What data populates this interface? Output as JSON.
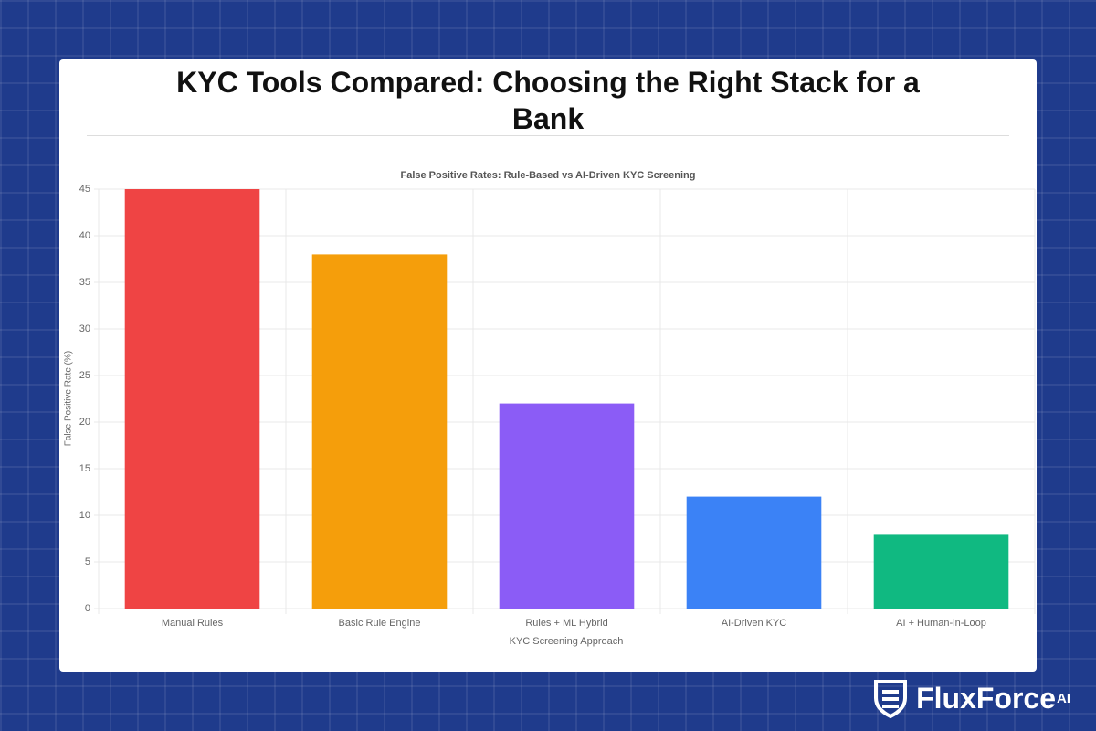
{
  "header": {
    "title": "KYC Tools Compared: Choosing the Right Stack for a Bank"
  },
  "brand": {
    "name": "FluxForce",
    "suffix": "AI"
  },
  "chart_data": {
    "type": "bar",
    "title": "False Positive Rates: Rule-Based vs AI-Driven KYC Screening",
    "x_label": "KYC Screening Approach",
    "y_label": "False Positive Rate (%)",
    "categories": [
      "Manual Rules",
      "Basic Rule Engine",
      "Rules + ML Hybrid",
      "AI-Driven KYC",
      "AI + Human-in-Loop"
    ],
    "values": [
      45,
      38,
      22,
      12,
      8
    ],
    "colors": [
      "#ef4444",
      "#f59e0b",
      "#8b5cf6",
      "#3b82f6",
      "#10b981"
    ],
    "ylim": [
      0,
      45
    ],
    "yticks": [
      0,
      5,
      10,
      15,
      20,
      25,
      30,
      35,
      40,
      45
    ],
    "grid": true
  }
}
